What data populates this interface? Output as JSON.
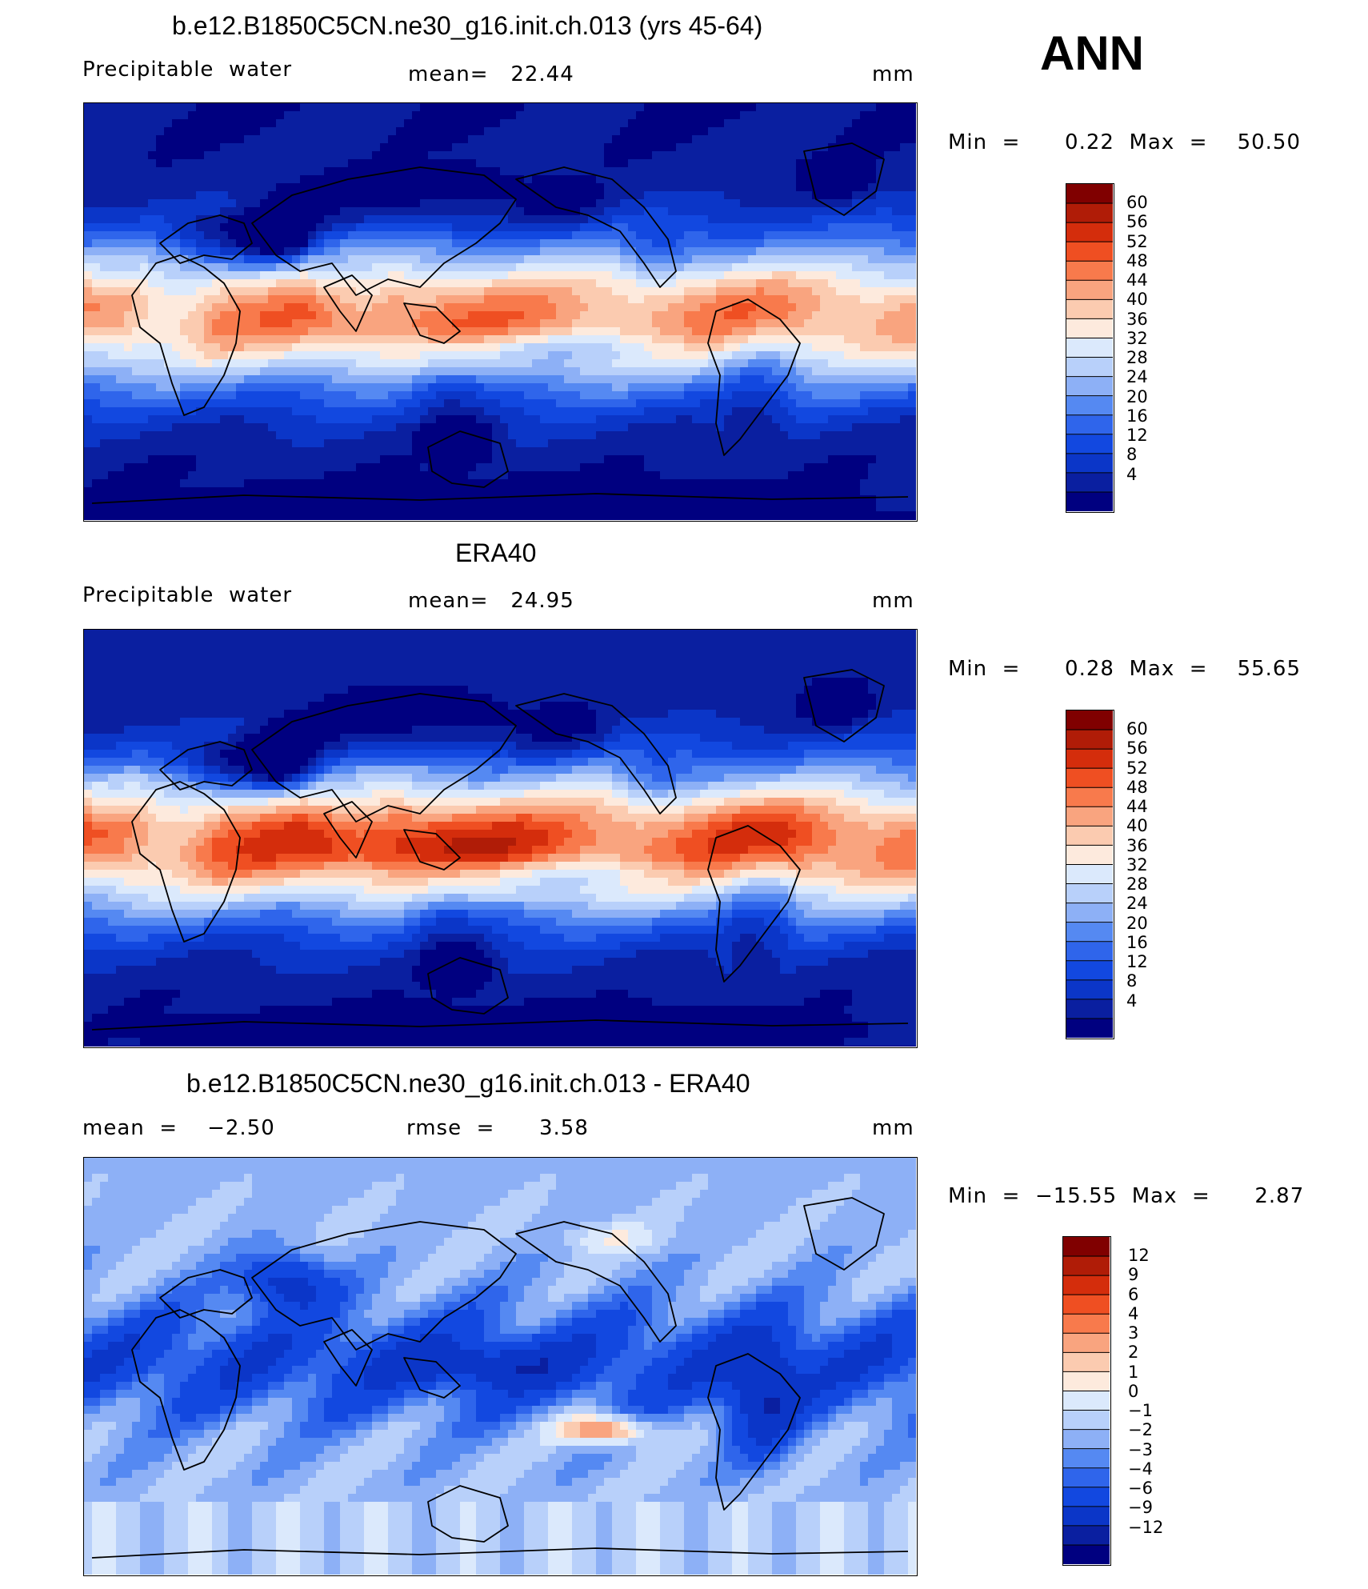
{
  "season": "ANN",
  "panels": [
    {
      "id": "model",
      "title": "b.e12.B1850C5CN.ne30_g16.init.ch.013 (yrs 45-64)",
      "variable": "Precipitable  water",
      "mean_text": "mean=   22.44",
      "units": "mm",
      "minmax_text": "Min  =      0.22  Max  =    50.50",
      "min": 0.22,
      "max": 50.5,
      "colorbar": {
        "colors": [
          "#000080",
          "#0a1fa0",
          "#0b36c8",
          "#1248e0",
          "#2f65eb",
          "#5589f2",
          "#8db0f6",
          "#b8d0fa",
          "#dbe9fc",
          "#fdeadd",
          "#fbcbb0",
          "#f9a47f",
          "#f87a4c",
          "#ef4f22",
          "#d42d0c",
          "#b01c07",
          "#800000"
        ],
        "ticks": [
          "60",
          "56",
          "52",
          "48",
          "44",
          "40",
          "36",
          "32",
          "28",
          "24",
          "20",
          "16",
          "12",
          "8",
          "4"
        ]
      }
    },
    {
      "id": "obs",
      "title": "ERA40",
      "variable": "Precipitable  water",
      "mean_text": "mean=   24.95",
      "units": "mm",
      "minmax_text": "Min  =      0.28  Max  =    55.65",
      "min": 0.28,
      "max": 55.65,
      "colorbar": {
        "colors": [
          "#000080",
          "#0a1fa0",
          "#0b36c8",
          "#1248e0",
          "#2f65eb",
          "#5589f2",
          "#8db0f6",
          "#b8d0fa",
          "#dbe9fc",
          "#fdeadd",
          "#fbcbb0",
          "#f9a47f",
          "#f87a4c",
          "#ef4f22",
          "#d42d0c",
          "#b01c07",
          "#800000"
        ],
        "ticks": [
          "60",
          "56",
          "52",
          "48",
          "44",
          "40",
          "36",
          "32",
          "28",
          "24",
          "20",
          "16",
          "12",
          "8",
          "4"
        ]
      }
    },
    {
      "id": "diff",
      "title": "b.e12.B1850C5CN.ne30_g16.init.ch.013 - ERA40",
      "mean_text": "mean  =    −2.50",
      "rmse_text": "rmse  =      3.58",
      "units": "mm",
      "minmax_text": "Min  =  −15.55  Max  =      2.87",
      "min": -15.55,
      "max": 2.87,
      "colorbar": {
        "colors": [
          "#000080",
          "#0a1fa0",
          "#0b36c8",
          "#1248e0",
          "#2f65eb",
          "#5589f2",
          "#8db0f6",
          "#b8d0fa",
          "#dbe9fc",
          "#fdeadd",
          "#fbcbb0",
          "#f9a47f",
          "#f87a4c",
          "#ef4f22",
          "#d42d0c",
          "#b01c07",
          "#800000"
        ],
        "ticks": [
          "12",
          "9",
          "6",
          "4",
          "3",
          "2",
          "1",
          "0",
          "−1",
          "−2",
          "−3",
          "−4",
          "−6",
          "−9",
          "−12"
        ]
      }
    }
  ]
}
